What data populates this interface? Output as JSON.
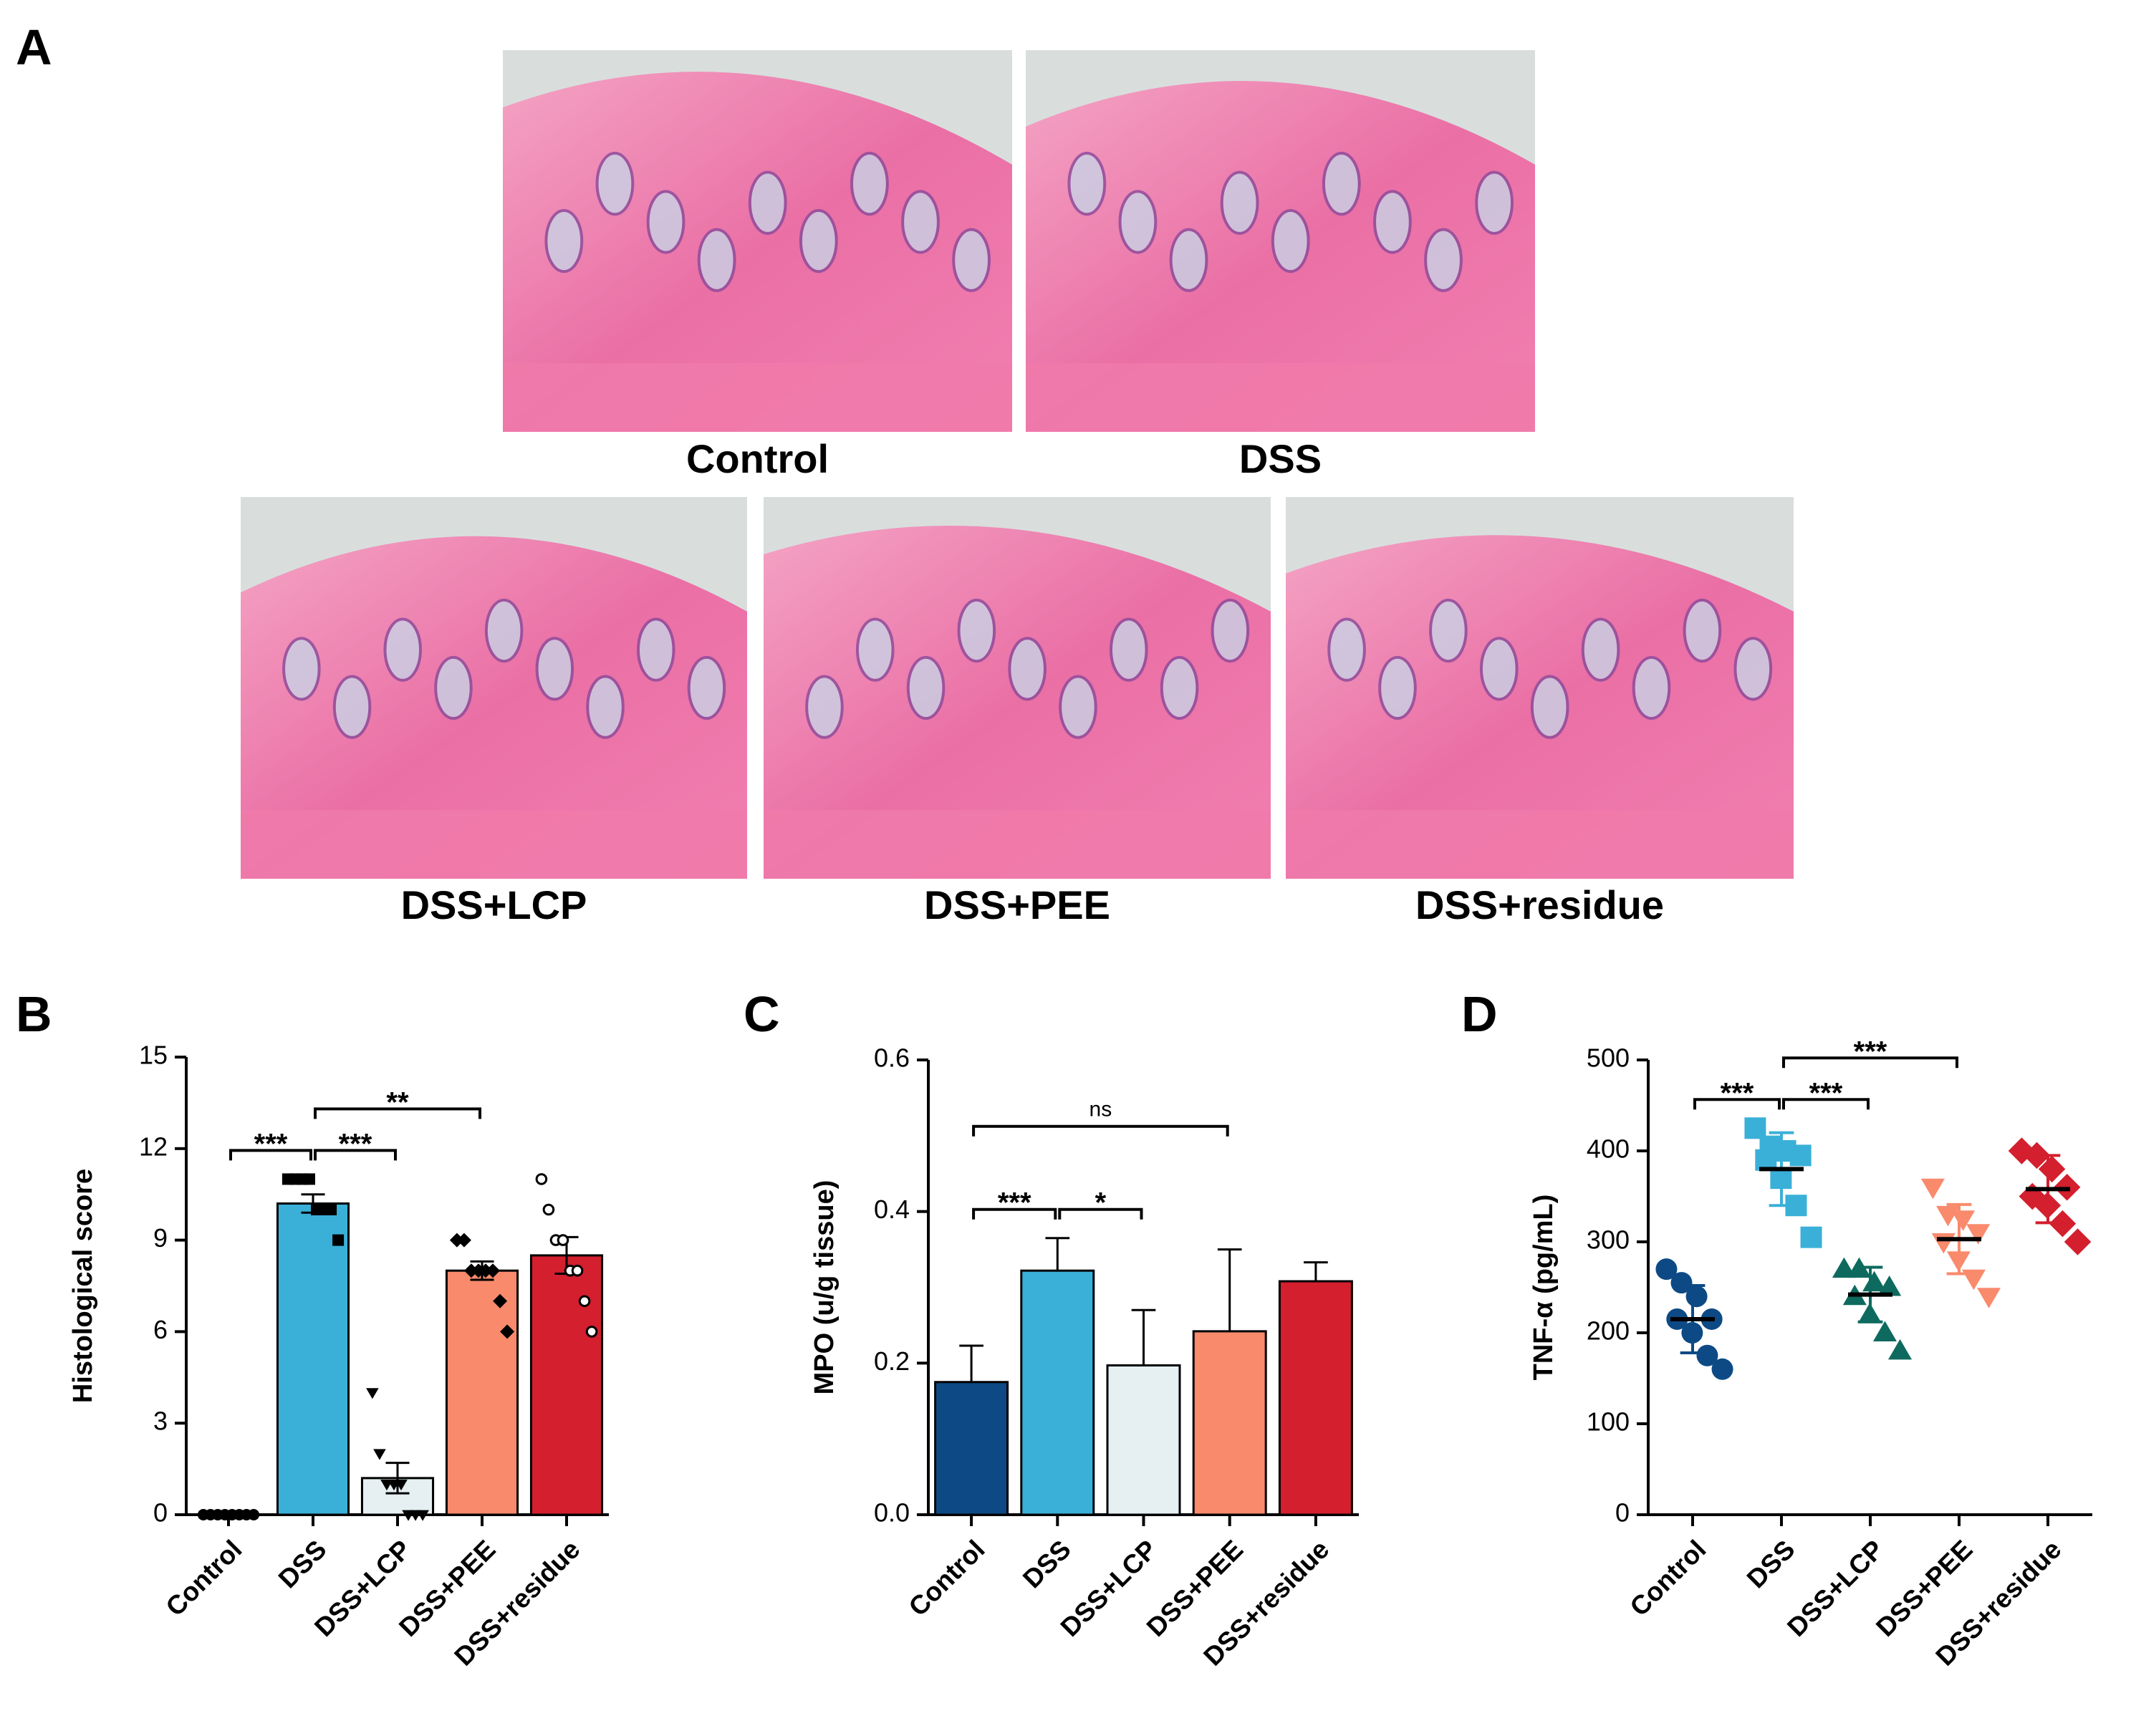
{
  "panel_a": {
    "label": "A",
    "images": [
      {
        "caption": "Control"
      },
      {
        "caption": "DSS"
      },
      {
        "caption": "DSS+LCP"
      },
      {
        "caption": "DSS+PEE"
      },
      {
        "caption": "DSS+residue"
      }
    ]
  },
  "chart_data": [
    {
      "type": "bar",
      "label": "B",
      "y_label": "Histological score",
      "categories": [
        "Control",
        "DSS",
        "DSS+LCP",
        "DSS+PEE",
        "DSS+residue"
      ],
      "values": [
        0,
        10.2,
        1.2,
        8.0,
        8.5
      ],
      "errors": [
        0,
        0.3,
        0.5,
        0.3,
        0.6
      ],
      "error_direction": "both",
      "colors": [
        "#0d4a85",
        "#3ab0d8",
        "#e6f0f3",
        "#f98a6c",
        "#d31f2e"
      ],
      "markers": [
        "circle",
        "square",
        "triangle-down",
        "diamond",
        "open-circle"
      ],
      "marker_color": "#000000",
      "points": [
        [
          0,
          0,
          0,
          0,
          0,
          0,
          0,
          0
        ],
        [
          11,
          11,
          11,
          11,
          10,
          10,
          10,
          9
        ],
        [
          4,
          2,
          1,
          1,
          1,
          0,
          0,
          0
        ],
        [
          9,
          9,
          8,
          8,
          8,
          8,
          7,
          6
        ],
        [
          11,
          10,
          9,
          9,
          8,
          8,
          7,
          6
        ]
      ],
      "ylim": [
        0,
        15
      ],
      "yticks": [
        0,
        3,
        6,
        9,
        12,
        15
      ],
      "annotations": [
        {
          "text": "***",
          "groups": [
            "Control",
            "DSS"
          ]
        },
        {
          "text": "***",
          "groups": [
            "DSS",
            "DSS+LCP"
          ]
        },
        {
          "text": "**",
          "groups": [
            "DSS",
            "DSS+PEE"
          ]
        }
      ]
    },
    {
      "type": "bar",
      "label": "C",
      "y_label": "MPO (u/g tissue)",
      "categories": [
        "Control",
        "DSS",
        "DSS+LCP",
        "DSS+PEE",
        "DSS+residue"
      ],
      "values": [
        0.175,
        0.322,
        0.197,
        0.242,
        0.308
      ],
      "errors": [
        0.048,
        0.043,
        0.073,
        0.108,
        0.025
      ],
      "error_direction": "up",
      "colors": [
        "#0d4a85",
        "#3ab0d8",
        "#e6f0f3",
        "#f98a6c",
        "#d31f2e"
      ],
      "ylim": [
        0,
        0.6
      ],
      "yticks": [
        {
          "value": 0,
          "label": "0.0"
        },
        0.2,
        0.4,
        0.6
      ],
      "annotations": [
        {
          "text": "***",
          "groups": [
            "Control",
            "DSS"
          ]
        },
        {
          "text": "*",
          "groups": [
            "DSS",
            "DSS+LCP"
          ]
        },
        {
          "text": "ns",
          "groups": [
            "Control",
            "DSS+PEE"
          ]
        }
      ]
    },
    {
      "type": "strip",
      "label": "D",
      "y_label": "TNF-α (pg/mL)",
      "categories": [
        "Control",
        "DSS",
        "DSS+LCP",
        "DSS+PEE",
        "DSS+residue"
      ],
      "means": [
        215,
        380,
        242,
        303,
        358
      ],
      "errors": [
        37,
        40,
        30,
        38,
        37
      ],
      "colors": [
        "#0d4a85",
        "#3ab0d8",
        "#0e6a5e",
        "#f98a6c",
        "#d31f2e"
      ],
      "markers": [
        "circle",
        "square",
        "triangle-up",
        "triangle-down",
        "diamond"
      ],
      "points": [
        [
          270,
          255,
          240,
          215,
          215,
          200,
          175,
          160
        ],
        [
          425,
          405,
          400,
          395,
          390,
          370,
          340,
          305
        ],
        [
          270,
          270,
          255,
          250,
          240,
          220,
          200,
          180
        ],
        [
          360,
          330,
          325,
          310,
          300,
          280,
          260,
          240
        ],
        [
          400,
          395,
          380,
          360,
          350,
          340,
          320,
          300
        ]
      ],
      "ylim": [
        0,
        500
      ],
      "yticks": [
        0,
        100,
        200,
        300,
        400,
        500
      ],
      "annotations": [
        {
          "text": "***",
          "groups": [
            "Control",
            "DSS"
          ]
        },
        {
          "text": "***",
          "groups": [
            "DSS",
            "DSS+LCP"
          ]
        },
        {
          "text": "***",
          "groups": [
            "DSS",
            "DSS+PEE"
          ]
        }
      ]
    }
  ]
}
